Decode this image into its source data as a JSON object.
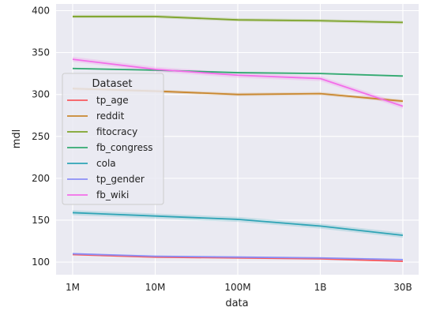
{
  "chart_data": {
    "type": "line",
    "xlabel": "data",
    "ylabel": "mdl",
    "categories": [
      "1M",
      "10M",
      "100M",
      "1B",
      "30B"
    ],
    "ylim": [
      85,
      408
    ],
    "yticks": [
      100,
      150,
      200,
      250,
      300,
      350,
      400
    ],
    "grid": true,
    "legend": {
      "title": "Dataset",
      "placement": "center-left"
    },
    "series": [
      {
        "name": "tp_age",
        "color": "#f7585d",
        "values": [
          109,
          106,
          105,
          104,
          101
        ],
        "ci": 1
      },
      {
        "name": "reddit",
        "color": "#c9872f",
        "values": [
          307,
          304,
          300,
          301,
          292
        ],
        "ci": 2
      },
      {
        "name": "fitocracy",
        "color": "#7ea42b",
        "values": [
          393,
          393,
          389,
          388,
          386
        ],
        "ci": 2
      },
      {
        "name": "fb_congress",
        "color": "#33aa71",
        "values": [
          331,
          329,
          326,
          325,
          322
        ],
        "ci": 1
      },
      {
        "name": "cola",
        "color": "#2fa4b6",
        "values": [
          159,
          155,
          151,
          143,
          132
        ],
        "ci": 3
      },
      {
        "name": "tp_gender",
        "color": "#8b8ef6",
        "values": [
          110,
          107,
          106,
          105,
          103
        ],
        "ci": 1
      },
      {
        "name": "fb_wiki",
        "color": "#f36ee9",
        "values": [
          342,
          330,
          323,
          319,
          286
        ],
        "ci": 3
      }
    ]
  }
}
